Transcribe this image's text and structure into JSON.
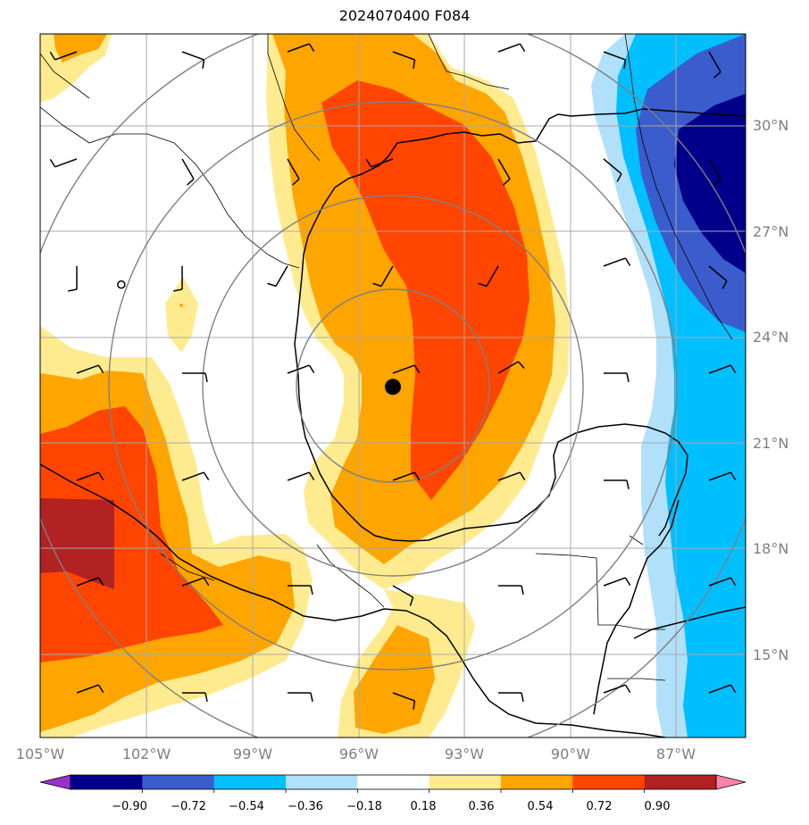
{
  "title": "2024070400 F084",
  "axes": {
    "lon_ticks": [
      "105°W",
      "102°W",
      "99°W",
      "96°W",
      "93°W",
      "90°W",
      "87°W"
    ],
    "lat_ticks": [
      "30°N",
      "27°N",
      "24°N",
      "21°N",
      "18°N",
      "15°N"
    ]
  },
  "colorbar": {
    "labels": [
      "−0.90",
      "−0.72",
      "−0.54",
      "−0.36",
      "−0.18",
      "0.18",
      "0.36",
      "0.54",
      "0.72",
      "0.90"
    ],
    "colors": [
      "#9932cc",
      "#00008b",
      "#3a5ccc",
      "#00bfff",
      "#b0e0fa",
      "#ffffff",
      "#ffeb8f",
      "#ffa500",
      "#ff4500",
      "#b22222",
      "#ff82ab"
    ]
  },
  "storm_center": {
    "lon": -95.0,
    "lat": 22.6
  },
  "small_marker": {
    "lon": -102.7,
    "lat": 25.5
  }
}
